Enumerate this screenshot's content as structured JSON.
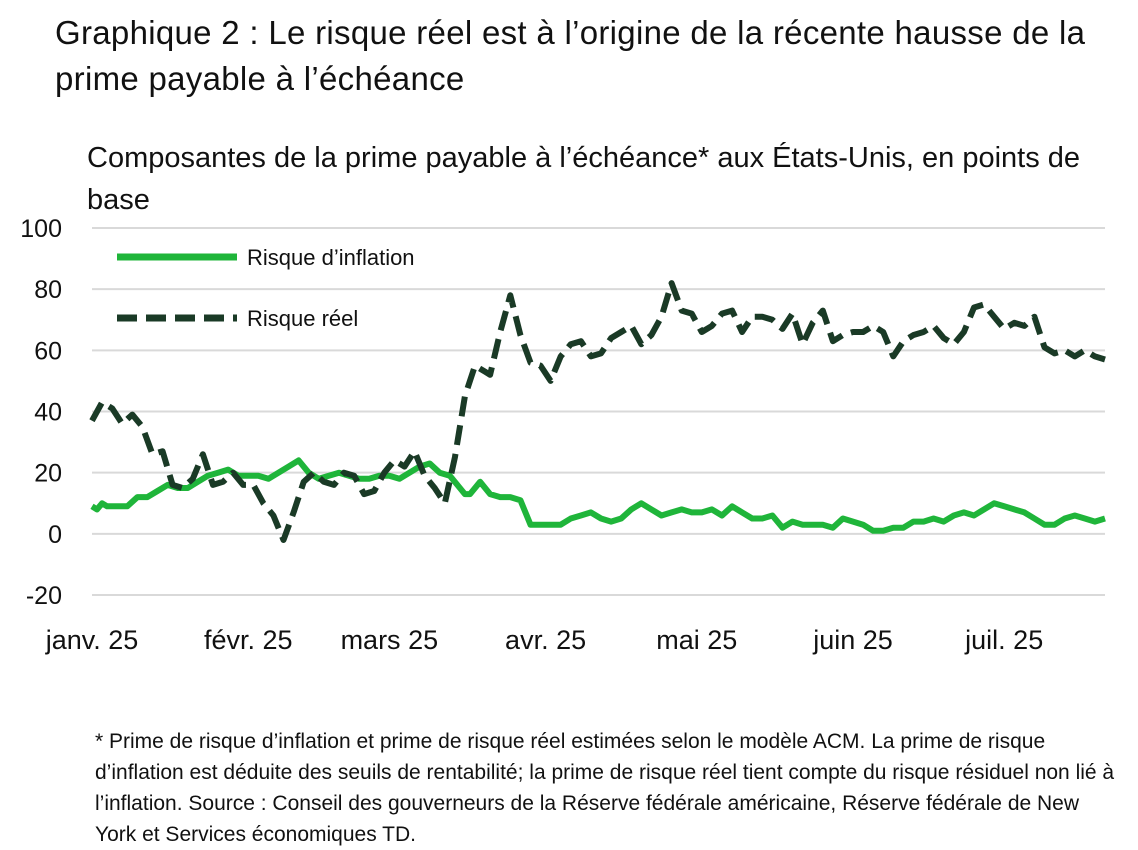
{
  "title": "Graphique 2 : Le risque réel est à l’origine de la récente hausse de la prime payable à l’échéance",
  "subtitle": "Composantes de la prime payable à l’échéance* aux États-Unis, en points de base",
  "footnote": "* Prime de risque d’inflation et prime de risque réel estimées selon le modèle ACM. La prime de risque d’inflation est déduite des seuils de rentabilité; la prime de risque réel tient compte du risque résiduel non lié à l’inflation. Source : Conseil des gouverneurs de la Réserve fédérale américaine, Réserve fédérale de New York et Services économiques TD.",
  "colors": {
    "inflation": "#1fb53a",
    "real": "#1a3a26",
    "grid": "#d9d9d9"
  },
  "chart_data": {
    "type": "line",
    "title": "Composantes de la prime payable à l’échéance* aux États-Unis, en points de base",
    "xlabel": "",
    "ylabel": "",
    "ylim": [
      -20,
      100
    ],
    "yticks": [
      -20,
      0,
      20,
      40,
      60,
      80,
      100
    ],
    "x_tick_labels": [
      "janv. 25",
      "févr. 25",
      "mars 25",
      "avr. 25",
      "mai 25",
      "juin 25",
      "juil. 25"
    ],
    "x_tick_positions": [
      0,
      31,
      59,
      90,
      120,
      151,
      181
    ],
    "xlim": [
      0,
      201
    ],
    "legend_position": "top-left",
    "grid": true,
    "series": [
      {
        "name": "Risque d’inflation",
        "style": "solid",
        "x": [
          0,
          1,
          2,
          3,
          5,
          7,
          9,
          11,
          13,
          15,
          17,
          19,
          21,
          23,
          25,
          27,
          29,
          31,
          33,
          35,
          37,
          39,
          41,
          43,
          45,
          47,
          49,
          51,
          53,
          55,
          57,
          59,
          61,
          63,
          65,
          67,
          69,
          71,
          73,
          74,
          75,
          77,
          79,
          81,
          83,
          85,
          87,
          89,
          91,
          93,
          95,
          97,
          99,
          101,
          103,
          105,
          107,
          109,
          111,
          113,
          115,
          117,
          119,
          121,
          123,
          125,
          127,
          129,
          131,
          133,
          135,
          137,
          139,
          141,
          143,
          145,
          147,
          149,
          151,
          153,
          155,
          157,
          159,
          161,
          163,
          165,
          167,
          169,
          171,
          173,
          175,
          177,
          179,
          181,
          183,
          185,
          187,
          189,
          191,
          193,
          195,
          197,
          199,
          201
        ],
        "values": [
          9,
          8,
          10,
          9,
          9,
          9,
          12,
          12,
          14,
          16,
          15,
          15,
          17,
          19,
          20,
          21,
          19,
          19,
          19,
          18,
          20,
          22,
          24,
          20,
          18,
          19,
          20,
          19,
          18,
          18,
          19,
          19,
          18,
          20,
          22,
          23,
          20,
          19,
          15,
          13,
          13,
          17,
          13,
          12,
          12,
          11,
          3,
          3,
          3,
          3,
          5,
          6,
          7,
          5,
          4,
          5,
          8,
          10,
          8,
          6,
          7,
          8,
          7,
          7,
          8,
          6,
          9,
          7,
          5,
          5,
          6,
          2,
          4,
          3,
          3,
          3,
          2,
          5,
          4,
          3,
          1,
          1,
          2,
          2,
          4,
          4,
          5,
          4,
          6,
          7,
          6,
          8,
          10,
          9,
          8,
          7,
          5,
          3,
          3,
          5,
          6,
          5,
          4,
          5
        ]
      },
      {
        "name": "Risque réel",
        "style": "dashed",
        "x": [
          0,
          2,
          4,
          6,
          8,
          10,
          12,
          14,
          16,
          18,
          20,
          22,
          24,
          26,
          28,
          30,
          32,
          34,
          36,
          38,
          40,
          42,
          44,
          46,
          48,
          50,
          52,
          54,
          56,
          58,
          60,
          62,
          64,
          66,
          68,
          70,
          72,
          74,
          76,
          78,
          79,
          81,
          83,
          85,
          87,
          89,
          91,
          93,
          95,
          97,
          99,
          101,
          103,
          105,
          107,
          109,
          111,
          113,
          115,
          117,
          119,
          121,
          123,
          125,
          127,
          129,
          131,
          133,
          135,
          137,
          139,
          141,
          143,
          145,
          147,
          149,
          151,
          153,
          155,
          157,
          159,
          161,
          163,
          165,
          167,
          169,
          171,
          173,
          175,
          177,
          179,
          181,
          183,
          185,
          187,
          189,
          191,
          193,
          195,
          197,
          199,
          201
        ],
        "values": [
          37,
          43,
          41,
          36,
          39,
          35,
          26,
          27,
          16,
          15,
          18,
          26,
          16,
          17,
          20,
          16,
          16,
          10,
          6,
          -2,
          7,
          17,
          20,
          17,
          16,
          20,
          19,
          13,
          14,
          20,
          24,
          22,
          27,
          19,
          15,
          10,
          25,
          45,
          55,
          53,
          52,
          66,
          78,
          65,
          56,
          55,
          50,
          58,
          62,
          63,
          58,
          59,
          64,
          66,
          68,
          62,
          65,
          71,
          82,
          73,
          72,
          66,
          68,
          72,
          73,
          66,
          71,
          71,
          70,
          67,
          72,
          62,
          69,
          73,
          63,
          65,
          66,
          66,
          68,
          66,
          58,
          63,
          65,
          66,
          68,
          64,
          62,
          66,
          74,
          75,
          71,
          67,
          69,
          68,
          71,
          61,
          59,
          60,
          58,
          60,
          58,
          57
        ]
      }
    ]
  }
}
